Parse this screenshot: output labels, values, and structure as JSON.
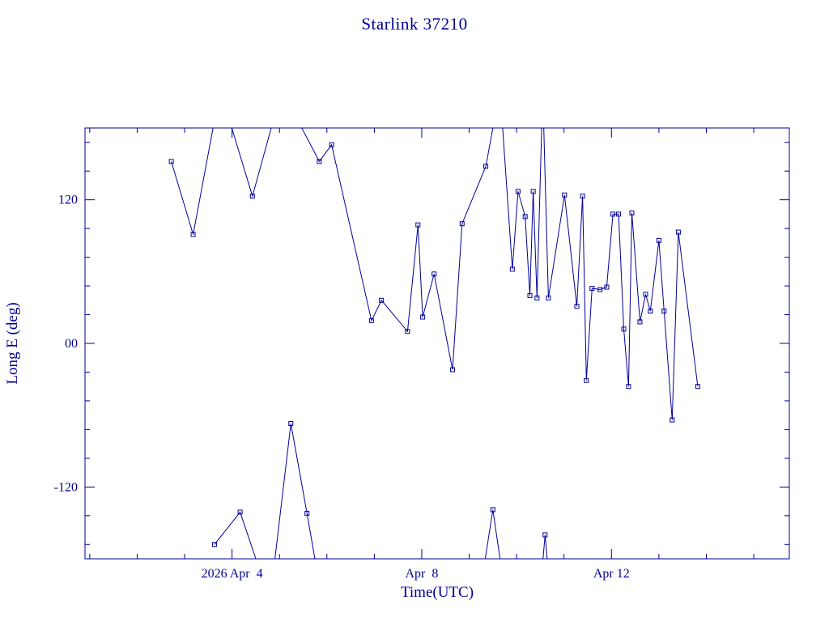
{
  "chart_data": {
    "type": "line",
    "title": "Starlink 37210",
    "xlabel": "Time(UTC)",
    "ylabel": "Long E (deg)",
    "color": "#000099",
    "background": "#ffffff",
    "marker": "open-square",
    "grid": false,
    "legend_position": "none",
    "x_unit": "day of April 2026 (UTC)",
    "xlim": [
      0.9,
      15.75
    ],
    "ylim": [
      -180,
      180
    ],
    "x_major_ticks": [
      {
        "value": 4,
        "label": "2026 Apr  4"
      },
      {
        "value": 8,
        "label": "Apr  8"
      },
      {
        "value": 12,
        "label": "Apr 12"
      }
    ],
    "x_minor_step": 1,
    "y_major_ticks": [
      {
        "value": 120,
        "label": "120"
      },
      {
        "value": 0,
        "label": "00"
      },
      {
        "value": -120,
        "label": "-120"
      }
    ],
    "y_minor_step": 24,
    "series": [
      {
        "name": "Long E",
        "segments": [
          [
            [
              2.72,
              152
            ],
            [
              3.18,
              91
            ],
            [
              3.75,
              212
            ],
            [
              4.43,
              123
            ],
            [
              5.05,
              212
            ],
            [
              5.84,
              152
            ],
            [
              6.1,
              166
            ],
            [
              6.94,
              19
            ],
            [
              7.15,
              36
            ],
            [
              7.7,
              10
            ],
            [
              7.92,
              99
            ],
            [
              8.02,
              22
            ],
            [
              8.26,
              58
            ],
            [
              8.65,
              -22
            ],
            [
              8.85,
              100
            ],
            [
              9.35,
              148
            ],
            [
              9.65,
              212
            ],
            [
              9.91,
              62
            ],
            [
              10.03,
              127
            ],
            [
              10.18,
              106
            ],
            [
              10.28,
              40
            ],
            [
              10.35,
              127
            ],
            [
              10.43,
              38
            ],
            [
              10.55,
              212
            ],
            [
              10.67,
              38
            ],
            [
              11.01,
              124
            ],
            [
              11.27,
              31
            ],
            [
              11.39,
              123
            ],
            [
              11.47,
              -31
            ],
            [
              11.59,
              46
            ],
            [
              11.76,
              45
            ],
            [
              11.9,
              47
            ],
            [
              12.03,
              108
            ],
            [
              12.15,
              108
            ],
            [
              12.26,
              12
            ],
            [
              12.36,
              -36
            ],
            [
              12.43,
              109
            ],
            [
              12.6,
              18
            ],
            [
              12.72,
              41
            ],
            [
              12.82,
              27
            ],
            [
              13.0,
              86
            ],
            [
              13.11,
              27
            ],
            [
              13.28,
              -64
            ],
            [
              13.41,
              93
            ],
            [
              13.82,
              -36
            ]
          ],
          [
            [
              3.63,
              -168
            ],
            [
              4.17,
              -141
            ],
            [
              4.8,
              -215
            ],
            [
              5.24,
              -67
            ],
            [
              5.58,
              -142
            ],
            [
              5.9,
              -215
            ]
          ],
          [
            [
              9.2,
              -215
            ],
            [
              9.5,
              -139
            ],
            [
              9.78,
              -215
            ]
          ],
          [
            [
              10.48,
              -215
            ],
            [
              10.6,
              -160
            ],
            [
              10.72,
              -215
            ]
          ]
        ]
      }
    ]
  }
}
